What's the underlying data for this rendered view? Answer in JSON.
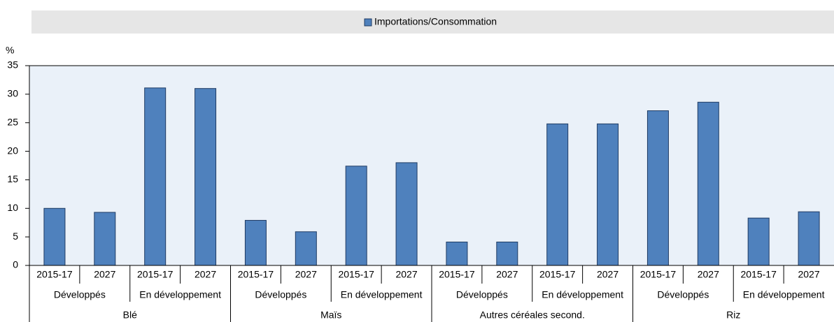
{
  "chart_data": {
    "type": "bar",
    "y_axis_label": "%",
    "categories": [
      "2015-17",
      "2027",
      "2015-17",
      "2027",
      "2015-17",
      "2027",
      "2015-17",
      "2027",
      "2015-17",
      "2027",
      "2015-17",
      "2027",
      "2015-17",
      "2027",
      "2015-17",
      "2027"
    ],
    "group_labels": [
      "Développés",
      "En développement",
      "Développés",
      "En développement",
      "Développés",
      "En développement",
      "Développés",
      "En développement"
    ],
    "supergroup_labels": [
      "Blé",
      "Maïs",
      "Autres céréales second.",
      "Riz"
    ],
    "series": [
      {
        "name": "Importations/Consommation",
        "color": "#4f81bd",
        "values": [
          10,
          9.3,
          31.1,
          31.0,
          7.9,
          5.9,
          17.4,
          18.0,
          4.1,
          4.1,
          24.8,
          24.8,
          27.1,
          28.6,
          8.3,
          9.4
        ]
      }
    ],
    "ylim": [
      0,
      35
    ],
    "yticks": [
      0,
      5,
      10,
      15,
      20,
      25,
      30,
      35
    ],
    "grid": false
  }
}
